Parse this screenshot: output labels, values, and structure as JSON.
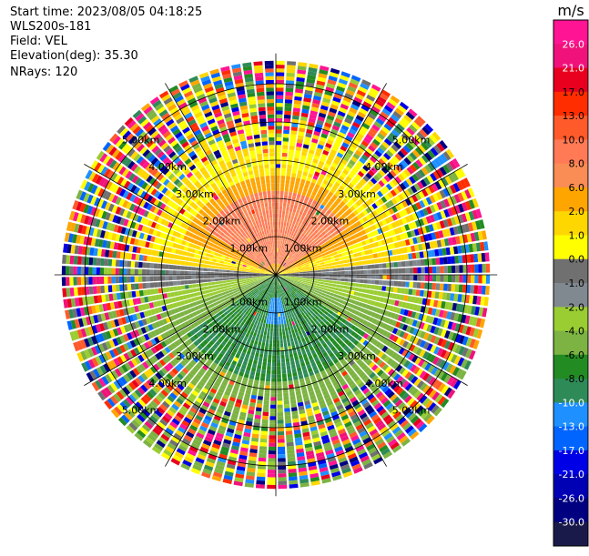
{
  "header": {
    "start_time": "Start time: 2023/08/05 04:18:25",
    "instrument": "WLS200s-181",
    "field": "Field: VEL",
    "elevation": "Elevation(deg): 35.30",
    "nrays": "NRays: 120"
  },
  "chart_data": {
    "type": "ppi",
    "field": "VEL",
    "units": "m/s",
    "nrays": 120,
    "elevation_deg": 35.3,
    "range_rings_km": [
      1.0,
      2.0,
      3.0,
      4.0,
      5.0
    ],
    "ring_labels": [
      "1.00km",
      "2.00km",
      "3.00km",
      "4.00km",
      "5.00km"
    ],
    "colorbar": {
      "label": "m/s",
      "ticks": [
        "26.0",
        "21.0",
        "17.0",
        "13.0",
        "10.0",
        "8.0",
        "6.0",
        "2.0",
        "1.0",
        "0.0",
        "-1.0",
        "-2.0",
        "-4.0",
        "-6.0",
        "-8.0",
        "-10.0",
        "-13.0",
        "-17.0",
        "-21.0",
        "-26.0",
        "-30.0"
      ],
      "colors": [
        "#ff1493",
        "#f0127a",
        "#e8001e",
        "#ff2d00",
        "#ff5a2a",
        "#ff7a55",
        "#fa8c55",
        "#ffa500",
        "#ffd700",
        "#ffff00",
        "#707070",
        "#808890",
        "#9acd32",
        "#7cb342",
        "#228b22",
        "#2e8b57",
        "#1e90ff",
        "#0064ff",
        "#0000e6",
        "#0000b4",
        "#000080",
        "#1a1a4a"
      ]
    },
    "pattern": {
      "north_core": "salmon-orange (~6-10 m/s) within ~2.2 km",
      "north_mid": "yellow (1-2 m/s)",
      "ew_axis": "gray (~0 m/s)",
      "south_core": "green (-4 to -8 m/s) with small blue patch near 1 km",
      "outer": "noisy multicolor beyond ~3.2 km"
    }
  }
}
